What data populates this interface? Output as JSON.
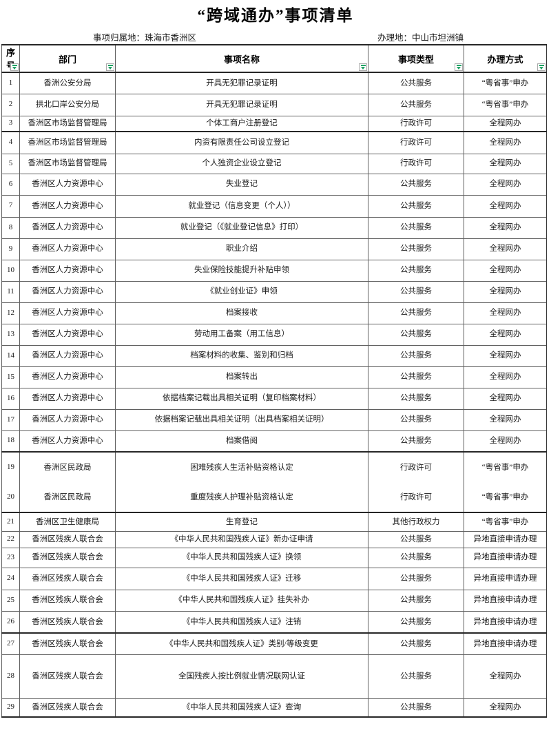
{
  "title": "“跨域通办”事项清单",
  "meta": {
    "origin_label": "事项归属地：",
    "origin_value": "珠海市香洲区",
    "handle_label": "办理地：",
    "handle_value": "中山市坦洲镇"
  },
  "colors": {
    "filter_green": "#21a366"
  },
  "icons": {
    "header_filter": "filter-dropdown-icon"
  },
  "table": {
    "columns": [
      "序号",
      "部门",
      "事项名称",
      "事项类型",
      "办理方式"
    ],
    "rows": [
      [
        "1",
        "香洲公安分局",
        "开具无犯罪记录证明",
        "公共服务",
        "“粤省事”申办"
      ],
      [
        "2",
        "拱北口岸公安分局",
        "开具无犯罪记录证明",
        "公共服务",
        "“粤省事”申办"
      ],
      [
        "3",
        "香洲区市场监督管理局",
        "个体工商户注册登记",
        "行政许可",
        "全程网办"
      ],
      [
        "4",
        "香洲区市场监督管理局",
        "内资有限责任公司设立登记",
        "行政许可",
        "全程网办"
      ],
      [
        "5",
        "香洲区市场监督管理局",
        "个人独资企业设立登记",
        "行政许可",
        "全程网办"
      ],
      [
        "6",
        "香洲区人力资源中心",
        "失业登记",
        "公共服务",
        "全程网办"
      ],
      [
        "7",
        "香洲区人力资源中心",
        "就业登记（信息变更（个人））",
        "公共服务",
        "全程网办"
      ],
      [
        "8",
        "香洲区人力资源中心",
        "就业登记（《就业登记信息》打印）",
        "公共服务",
        "全程网办"
      ],
      [
        "9",
        "香洲区人力资源中心",
        "职业介绍",
        "公共服务",
        "全程网办"
      ],
      [
        "10",
        "香洲区人力资源中心",
        "失业保险技能提升补贴申领",
        "公共服务",
        "全程网办"
      ],
      [
        "11",
        "香洲区人力资源中心",
        "《就业创业证》申领",
        "公共服务",
        "全程网办"
      ],
      [
        "12",
        "香洲区人力资源中心",
        "档案接收",
        "公共服务",
        "全程网办"
      ],
      [
        "13",
        "香洲区人力资源中心",
        "劳动用工备案（用工信息）",
        "公共服务",
        "全程网办"
      ],
      [
        "14",
        "香洲区人力资源中心",
        "档案材料的收集、鉴别和归档",
        "公共服务",
        "全程网办"
      ],
      [
        "15",
        "香洲区人力资源中心",
        "档案转出",
        "公共服务",
        "全程网办"
      ],
      [
        "16",
        "香洲区人力资源中心",
        "依据档案记载出具相关证明（复印档案材料）",
        "公共服务",
        "全程网办"
      ],
      [
        "17",
        "香洲区人力资源中心",
        "依据档案记载出具相关证明（出具档案相关证明）",
        "公共服务",
        "全程网办"
      ],
      [
        "18",
        "香洲区人力资源中心",
        "档案借阅",
        "公共服务",
        "全程网办"
      ],
      [
        "19",
        "香洲区民政局",
        "困难残疾人生活补贴资格认定",
        "行政许可",
        "“粤省事”申办"
      ],
      [
        "20",
        "香洲区民政局",
        "重度残疾人护理补贴资格认定",
        "行政许可",
        "“粤省事”申办"
      ],
      [
        "21",
        "香洲区卫生健康局",
        "生育登记",
        "其他行政权力",
        "“粤省事”申办"
      ],
      [
        "22",
        "香洲区残疾人联合会",
        "《中华人民共和国残疾人证》新办证申请",
        "公共服务",
        "异地直接申请办理"
      ],
      [
        "23",
        "香洲区残疾人联合会",
        "《中华人民共和国残疾人证》换领",
        "公共服务",
        "异地直接申请办理"
      ],
      [
        "24",
        "香洲区残疾人联合会",
        "《中华人民共和国残疾人证》迁移",
        "公共服务",
        "异地直接申请办理"
      ],
      [
        "25",
        "香洲区残疾人联合会",
        "《中华人民共和国残疾人证》挂失补办",
        "公共服务",
        "异地直接申请办理"
      ],
      [
        "26",
        "香洲区残疾人联合会",
        "《中华人民共和国残疾人证》注销",
        "公共服务",
        "异地直接申请办理"
      ],
      [
        "27",
        "香洲区残疾人联合会",
        "《中华人民共和国残疾人证》类别/等级变更",
        "公共服务",
        "异地直接申请办理"
      ],
      [
        "28",
        "香洲区残疾人联合会",
        "全国残疾人按比例就业情况联网认证",
        "公共服务",
        "全程网办"
      ],
      [
        "29",
        "香洲区残疾人联合会",
        "《中华人民共和国残疾人证》查询",
        "公共服务",
        "全程网办"
      ]
    ]
  }
}
